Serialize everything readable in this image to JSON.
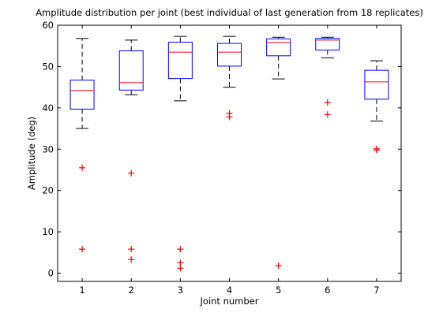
{
  "chart_data": {
    "type": "box",
    "title": "Amplitude distribution per joint (best individual of last generation from 18 replicates)",
    "xlabel": "Joint number",
    "ylabel": "Amplitude (deg)",
    "ylim": [
      -2,
      60
    ],
    "xlim": [
      0.5,
      7.5
    ],
    "yticks": [
      0,
      10,
      20,
      30,
      40,
      50,
      60
    ],
    "categories": [
      "1",
      "2",
      "3",
      "4",
      "5",
      "6",
      "7"
    ],
    "grid": false,
    "colors": {
      "box": "#0000ff",
      "median": "#ff0000",
      "whisker": "#000000",
      "outlier": "#ff0000"
    },
    "boxes": [
      {
        "joint": "1",
        "whisker_low": 35.0,
        "q1": 39.7,
        "median": 44.2,
        "q3": 46.7,
        "whisker_high": 56.8,
        "outliers": [
          25.5,
          5.8
        ]
      },
      {
        "joint": "2",
        "whisker_low": 43.2,
        "q1": 44.3,
        "median": 46.1,
        "q3": 53.8,
        "whisker_high": 56.4,
        "outliers": [
          24.2,
          5.8,
          3.3
        ]
      },
      {
        "joint": "3",
        "whisker_low": 41.7,
        "q1": 47.1,
        "median": 53.5,
        "q3": 55.9,
        "whisker_high": 57.3,
        "outliers": [
          5.8,
          2.5,
          1.2
        ]
      },
      {
        "joint": "4",
        "whisker_low": 45.0,
        "q1": 50.1,
        "median": 53.5,
        "q3": 55.6,
        "whisker_high": 57.3,
        "outliers": [
          38.7,
          37.8
        ]
      },
      {
        "joint": "5",
        "whisker_low": 47.0,
        "q1": 52.6,
        "median": 55.8,
        "q3": 56.7,
        "whisker_high": 57.1,
        "outliers": [
          1.8
        ]
      },
      {
        "joint": "6",
        "whisker_low": 52.1,
        "q1": 54.0,
        "median": 56.4,
        "q3": 56.8,
        "whisker_high": 57.1,
        "outliers": [
          41.3,
          38.4
        ]
      },
      {
        "joint": "7",
        "whisker_low": 36.8,
        "q1": 42.1,
        "median": 46.3,
        "q3": 49.1,
        "whisker_high": 51.4,
        "outliers": [
          30.1,
          29.8
        ]
      }
    ]
  }
}
